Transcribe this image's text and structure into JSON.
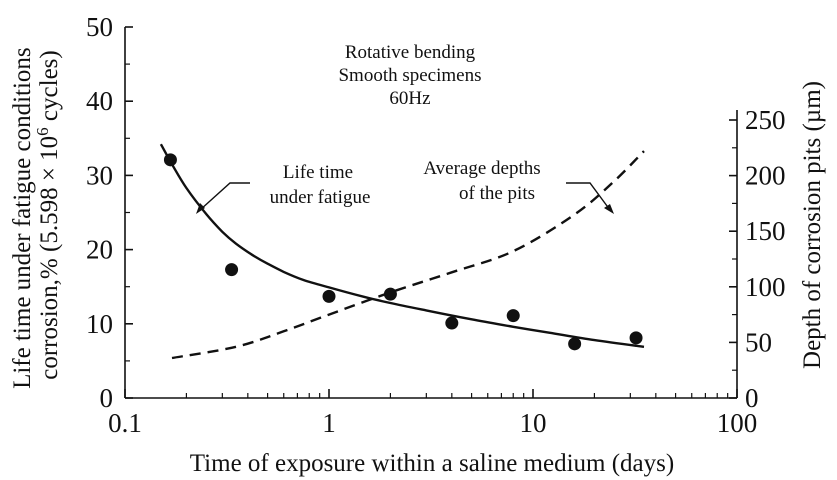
{
  "chart_data": {
    "type": "line",
    "conditions": [
      "Rotative bending",
      "Smooth specimens",
      "60Hz"
    ],
    "x_axis": {
      "label": "Time of exposure within a saline medium (days)",
      "scale": "log",
      "range": [
        0.1,
        100
      ],
      "ticks": [
        0.1,
        1,
        10,
        100
      ],
      "tick_labels": [
        "0.1",
        "1",
        "10",
        "100"
      ]
    },
    "y_left": {
      "label_line1": "Life time under fatigue conditions",
      "label_line2_pre": "corrosion,% (5.598 × 10",
      "label_line2_sup": "6",
      "label_line2_post": " cycles)",
      "range": [
        0,
        50
      ],
      "ticks": [
        0,
        10,
        20,
        30,
        40,
        50
      ],
      "tick_labels": [
        "0",
        "10",
        "20",
        "30",
        "40",
        "50"
      ]
    },
    "y_right": {
      "label": "Depth of corrosion pits (µm)",
      "range": [
        0,
        250
      ],
      "ticks": [
        0,
        50,
        100,
        150,
        200,
        250
      ],
      "tick_labels": [
        "0",
        "50",
        "100",
        "150",
        "200",
        "250"
      ]
    },
    "annotations": {
      "life": [
        "Life time",
        "under fatigue"
      ],
      "depth": [
        "Average depths",
        "of the pits"
      ]
    },
    "series": [
      {
        "key": "points",
        "style": "markers",
        "axis": "left",
        "x": [
          0.167,
          0.333,
          1,
          2,
          4,
          8,
          16,
          32
        ],
        "y": [
          32.1,
          17.3,
          13.7,
          14.0,
          10.1,
          11.1,
          7.3,
          8.1
        ]
      },
      {
        "key": "life",
        "style": "solid",
        "axis": "left",
        "x": [
          0.15,
          0.17,
          0.2,
          0.25,
          0.3,
          0.35,
          0.42,
          0.5,
          0.6,
          0.75,
          1,
          1.5,
          2,
          3,
          5,
          8,
          12,
          20,
          35
        ],
        "y": [
          34.2,
          31.5,
          28.3,
          24.8,
          22.4,
          20.8,
          19.3,
          18.1,
          17.0,
          15.9,
          14.9,
          13.6,
          12.8,
          11.8,
          10.6,
          9.6,
          8.8,
          7.8,
          6.9
        ]
      },
      {
        "key": "depth",
        "style": "dashed",
        "axis": "right",
        "x": [
          0.17,
          0.35,
          0.6,
          1,
          2,
          4,
          8,
          16,
          25,
          35
        ],
        "y": [
          36,
          46,
          60,
          75,
          95,
          113,
          132,
          165,
          195,
          222
        ]
      }
    ]
  }
}
